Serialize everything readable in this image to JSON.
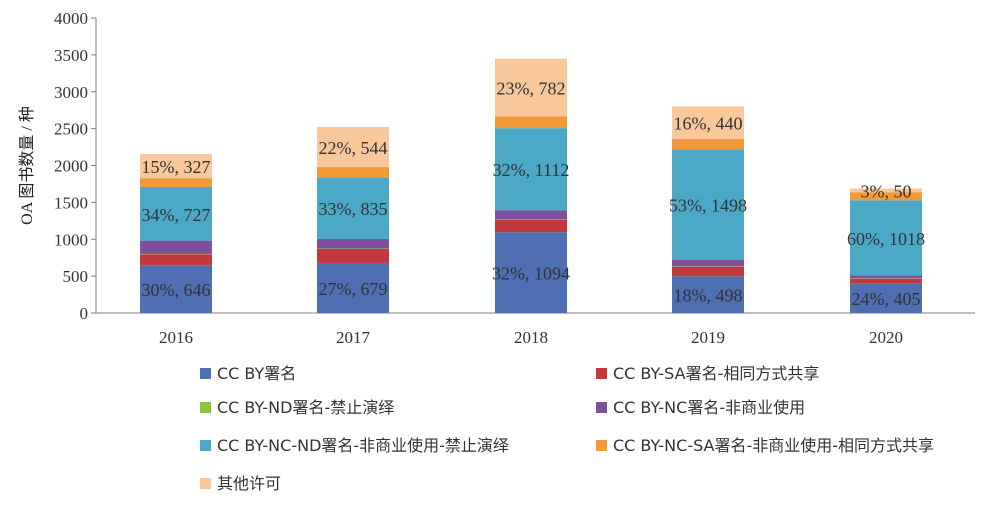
{
  "chart_data": {
    "type": "bar",
    "stacked": true,
    "ylabel": "OA 图书数量 / 种",
    "xlabel": "",
    "ylim": [
      0,
      4000
    ],
    "yticks": [
      0,
      500,
      1000,
      1500,
      2000,
      2500,
      3000,
      3500,
      4000
    ],
    "grid": false,
    "legend_position": "bottom",
    "categories": [
      "2016",
      "2017",
      "2018",
      "2019",
      "2020"
    ],
    "series": [
      {
        "name": "CC BY署名",
        "color": "#4f6fb3",
        "values": [
          646,
          679,
          1094,
          498,
          405
        ]
      },
      {
        "name": "CC BY-SA署名-相同方式共享",
        "color": "#c0393c",
        "values": [
          150,
          190,
          170,
          130,
          60
        ]
      },
      {
        "name": "CC BY-ND署名-禁止演绎",
        "color": "#8cc63e",
        "values": [
          5,
          5,
          5,
          5,
          5
        ]
      },
      {
        "name": "CC BY-NC署名-非商业使用",
        "color": "#7d4f9c",
        "values": [
          180,
          130,
          125,
          90,
          40
        ]
      },
      {
        "name": "CC BY-NC-ND署名-非商业使用-禁止演绎",
        "color": "#4ba8c6",
        "values": [
          727,
          835,
          1112,
          1498,
          1018
        ]
      },
      {
        "name": "CC BY-NC-SA署名-非商业使用-相同方式共享",
        "color": "#f29a3a",
        "values": [
          120,
          140,
          160,
          140,
          110
        ]
      },
      {
        "name": "其他许可",
        "color": "#f8c79a",
        "values": [
          327,
          544,
          782,
          440,
          50
        ]
      }
    ],
    "data_labels": [
      {
        "series": 0,
        "category": 0,
        "text": "30%, 646"
      },
      {
        "series": 0,
        "category": 1,
        "text": "27%, 679"
      },
      {
        "series": 0,
        "category": 2,
        "text": "32%, 1094"
      },
      {
        "series": 0,
        "category": 3,
        "text": "18%, 498"
      },
      {
        "series": 0,
        "category": 4,
        "text": "24%, 405"
      },
      {
        "series": 4,
        "category": 0,
        "text": "34%, 727"
      },
      {
        "series": 4,
        "category": 1,
        "text": "33%, 835"
      },
      {
        "series": 4,
        "category": 2,
        "text": "32%, 1112"
      },
      {
        "series": 4,
        "category": 3,
        "text": "53%, 1498"
      },
      {
        "series": 4,
        "category": 4,
        "text": "60%, 1018"
      },
      {
        "series": 6,
        "category": 0,
        "text": "15%, 327"
      },
      {
        "series": 6,
        "category": 1,
        "text": "22%, 544"
      },
      {
        "series": 6,
        "category": 2,
        "text": "23%, 782"
      },
      {
        "series": 6,
        "category": 3,
        "text": "16%, 440"
      },
      {
        "series": 6,
        "category": 4,
        "text": "3%, 50"
      }
    ]
  }
}
